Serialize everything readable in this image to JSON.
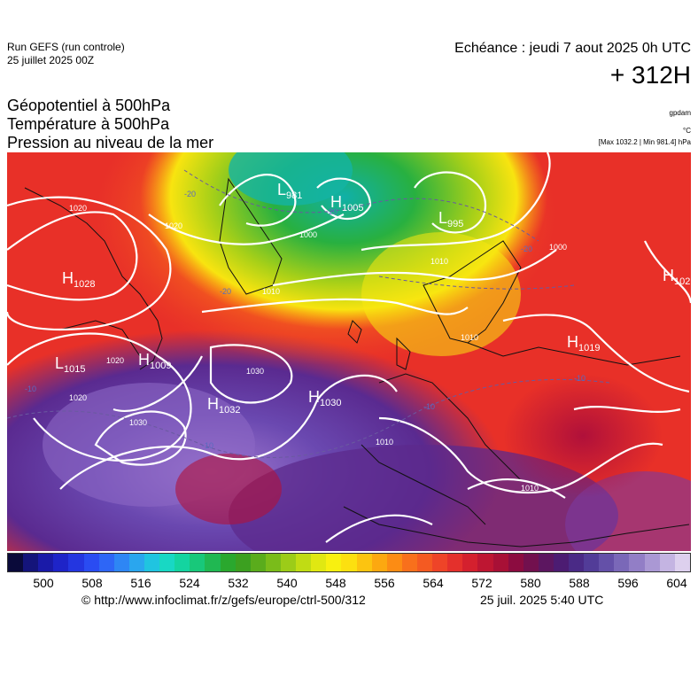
{
  "header": {
    "run_label": "Run GEFS (run controle)",
    "run_date": "25 juillet 2025 00Z",
    "echeance": "Echéance : jeudi 7 aout 2025 0h UTC",
    "lead_time": "+ 312H"
  },
  "titles": {
    "line1": "Géopotentiel à 500hPa",
    "line2": "Température à 500hPa",
    "line3": "Pression au niveau de la mer"
  },
  "units": {
    "geopotential": "gpdam",
    "temperature": "°C",
    "pressure_range": "[Max 1032.2 | Min 981.4] hPa"
  },
  "pressure_centers": [
    {
      "type": "H",
      "value": "1028"
    },
    {
      "type": "L",
      "value": "1015"
    },
    {
      "type": "H",
      "value": "1009"
    },
    {
      "type": "H",
      "value": "1032"
    },
    {
      "type": "H",
      "value": "1030"
    },
    {
      "type": "L",
      "value": "981"
    },
    {
      "type": "H",
      "value": "1005"
    },
    {
      "type": "L",
      "value": "995"
    },
    {
      "type": "H",
      "value": "1019"
    },
    {
      "type": "H",
      "value": "102"
    }
  ],
  "isobar_labels": [
    "1020",
    "1010",
    "1000",
    "1030",
    "1020",
    "1010",
    "1000",
    "1010",
    "1010",
    "1020",
    "1010",
    "1020",
    "1030"
  ],
  "temperature_labels": [
    "-20",
    "-20",
    "-20",
    "-10",
    "-10",
    "-10",
    "-10",
    "-20"
  ],
  "legend": {
    "tick_labels": [
      "500",
      "508",
      "516",
      "524",
      "532",
      "540",
      "548",
      "556",
      "564",
      "572",
      "580",
      "588",
      "596",
      "604"
    ],
    "colors": [
      "#0a0a3a",
      "#14147a",
      "#1a1aa8",
      "#1e24c8",
      "#2436e0",
      "#2a4cf2",
      "#2e66f6",
      "#2e86f4",
      "#2aa6ee",
      "#20c4e0",
      "#18d8c4",
      "#14d4a0",
      "#18c87a",
      "#20b852",
      "#2aa82e",
      "#3ca020",
      "#5aac1c",
      "#7abc1a",
      "#9ccc18",
      "#c0dc14",
      "#e0e812",
      "#f8f010",
      "#fce010",
      "#fcc410",
      "#fca810",
      "#fc8c14",
      "#f8701c",
      "#f45a22",
      "#ee4428",
      "#e4302c",
      "#d4202e",
      "#be1632",
      "#a81036",
      "#8c0c40",
      "#72104e",
      "#5c1660",
      "#4c1c72",
      "#4a2a86",
      "#523c98",
      "#6450a8",
      "#7a68b8",
      "#927ec6",
      "#aa98d4",
      "#c4b4e2",
      "#ddd0ee"
    ]
  },
  "footer": {
    "source": "© http://www.infoclimat.fr/z/gefs/europe/ctrl-500/312",
    "generated": "25 juil. 2025  5:40 UTC"
  }
}
